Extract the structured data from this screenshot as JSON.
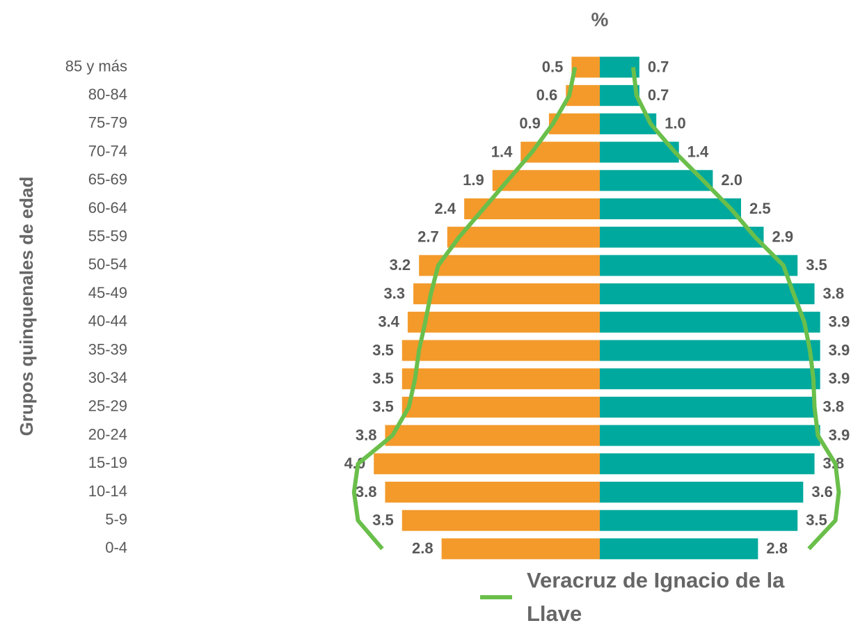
{
  "chart_data": {
    "type": "pyramid",
    "title": "%",
    "y_axis_label": "Grupos quinquenales de edad",
    "categories": [
      "85 y más",
      "80-84",
      "75-79",
      "70-74",
      "65-69",
      "60-64",
      "55-59",
      "50-54",
      "45-49",
      "40-44",
      "35-39",
      "30-34",
      "25-29",
      "20-24",
      "15-19",
      "10-14",
      "5-9",
      "0-4"
    ],
    "series": [
      {
        "color": "#f39a2b",
        "side": "left",
        "values": [
          0.5,
          0.6,
          0.9,
          1.4,
          1.9,
          2.4,
          2.7,
          3.2,
          3.3,
          3.4,
          3.5,
          3.5,
          3.5,
          3.8,
          4.0,
          3.8,
          3.5,
          2.8
        ],
        "value_labels": [
          "0.5",
          "0.6",
          "0.9",
          "1.4",
          "1.9",
          "2.4",
          "2.7",
          "3.2",
          "3.3",
          "3.4",
          "3.5",
          "3.5",
          "3.5",
          "3.8",
          "4.0",
          "3.8",
          "3.5",
          "2.8"
        ]
      },
      {
        "color": "#00a99d",
        "side": "right",
        "values": [
          0.7,
          0.7,
          1.0,
          1.4,
          2.0,
          2.5,
          2.9,
          3.5,
          3.8,
          3.9,
          3.9,
          3.9,
          3.8,
          3.9,
          3.8,
          3.6,
          3.5,
          2.8
        ],
        "value_labels": [
          "0.7",
          "0.7",
          "1.0",
          "1.4",
          "2.0",
          "2.5",
          "2.9",
          "3.5",
          "3.8",
          "3.9",
          "3.9",
          "3.9",
          "3.8",
          "3.9",
          "3.8",
          "3.6",
          "3.5",
          "2.8"
        ]
      }
    ],
    "line": {
      "name": "Veracruz de Ignacio de la Llave",
      "color": "#6abf4b",
      "left": [
        0.44,
        0.54,
        0.83,
        1.2,
        1.63,
        2.06,
        2.49,
        2.86,
        2.99,
        3.09,
        3.2,
        3.27,
        3.38,
        3.67,
        4.28,
        4.35,
        4.28,
        3.85
      ],
      "right": [
        0.59,
        0.65,
        0.9,
        1.33,
        1.83,
        2.32,
        2.75,
        3.25,
        3.43,
        3.62,
        3.72,
        3.78,
        3.8,
        3.86,
        4.17,
        4.23,
        4.17,
        3.7
      ]
    }
  }
}
